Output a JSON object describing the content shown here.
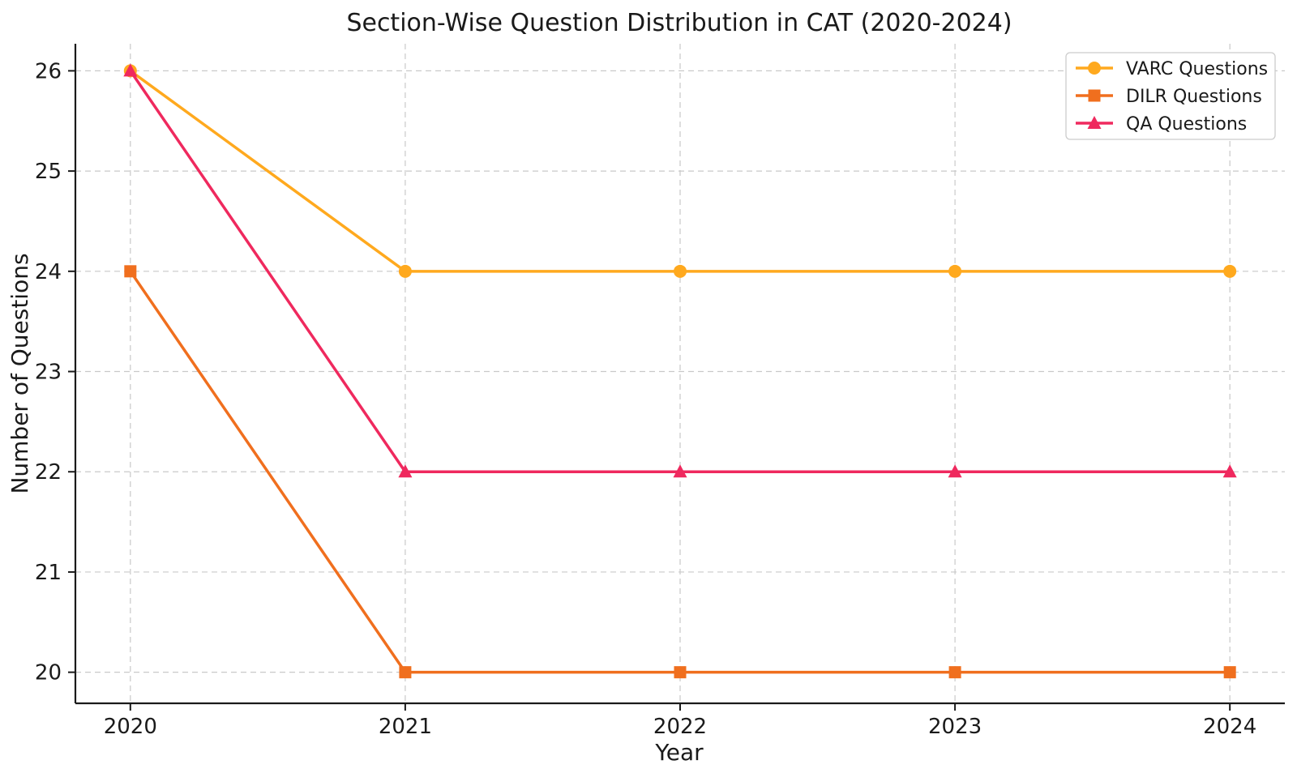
{
  "chart_data": {
    "type": "line",
    "title": "Section-Wise Question Distribution in CAT (2020-2024)",
    "xlabel": "Year",
    "ylabel": "Number of Questions",
    "x": [
      2020,
      2021,
      2022,
      2023,
      2024
    ],
    "series": [
      {
        "name": "VARC Questions",
        "values": [
          26,
          24,
          24,
          24,
          24
        ],
        "color": "#FFA91E",
        "marker": "circle"
      },
      {
        "name": "DILR Questions",
        "values": [
          24,
          20,
          20,
          20,
          20
        ],
        "color": "#F06F1E",
        "marker": "square"
      },
      {
        "name": "QA Questions",
        "values": [
          26,
          22,
          22,
          22,
          22
        ],
        "color": "#EF295E",
        "marker": "triangle"
      }
    ],
    "yticks": [
      20,
      21,
      22,
      23,
      24,
      25,
      26
    ],
    "xticks": [
      2020,
      2021,
      2022,
      2023,
      2024
    ],
    "ylim": [
      19.69,
      26.27
    ],
    "xlim": [
      2019.8,
      2024.2
    ],
    "grid": true,
    "grid_style": "dashed",
    "legend_position": "upper right",
    "colors": {
      "grid": "#c9c9c9",
      "spine": "#1a1a1a",
      "text": "#1a1a1a",
      "legend_border": "#cccccc",
      "background": "#ffffff"
    }
  }
}
